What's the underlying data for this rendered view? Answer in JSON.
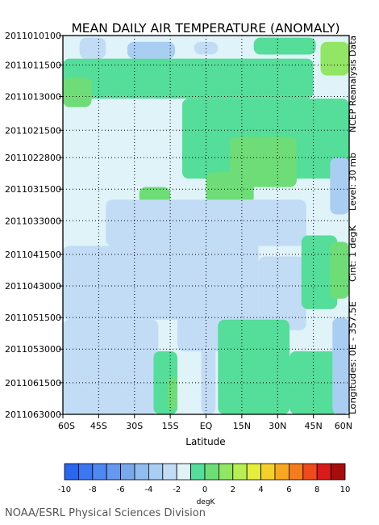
{
  "chart_data": {
    "type": "heatmap",
    "title": "MEAN DAILY AIR TEMPERATURE (ANOMALY)",
    "xlabel": "Latitude",
    "ylabel": "",
    "x_tick_labels": [
      "60S",
      "45S",
      "30S",
      "15S",
      "EQ",
      "15N",
      "30N",
      "45N",
      "60N"
    ],
    "x_values": [
      -60,
      -45,
      -30,
      -15,
      0,
      15,
      30,
      45,
      60
    ],
    "xlim": [
      -60,
      60
    ],
    "y_tick_labels": [
      "2011010100",
      "2011011500",
      "2011013000",
      "2011021500",
      "2011022800",
      "2011031500",
      "2011033000",
      "2011041500",
      "2011043000",
      "2011051500",
      "2011053000",
      "2011061500",
      "2011063000"
    ],
    "y_tick_days": [
      0,
      14,
      29,
      45,
      58,
      73,
      88,
      104,
      119,
      134,
      149,
      165,
      180
    ],
    "ylim": [
      "2011010100",
      "2011063000"
    ],
    "grid": true,
    "side_labels": [
      "NCEP Reanalysis Data",
      "Level: 30 mb",
      "Cint: 1 degK",
      "Longitudes: 0E - 357.5E"
    ],
    "colorbar": {
      "label": "degK",
      "tick_labels": [
        "-10",
        "-8",
        "-6",
        "-4",
        "-2",
        "0",
        "2",
        "4",
        "6",
        "8",
        "10"
      ],
      "levels": [
        -10,
        -9,
        -8,
        -7,
        -6,
        -5,
        -4,
        -3,
        -2,
        -1,
        0,
        1,
        2,
        3,
        4,
        5,
        6,
        7,
        8,
        9,
        10
      ],
      "colors": [
        "#2a66ee",
        "#3c77f0",
        "#4f88f0",
        "#6598ee",
        "#7aa8ec",
        "#92bbee",
        "#aacdf2",
        "#c2dcf6",
        "#dff3f8",
        "#55dd9a",
        "#6fdd77",
        "#92e565",
        "#b7ee55",
        "#e4ee3c",
        "#f6d02a",
        "#f8a820",
        "#f47c1c",
        "#ee4a1c",
        "#d81a1a",
        "#a80d0d"
      ]
    },
    "field_regions": [
      {
        "lat": [
          -60,
          60
        ],
        "day": [
          0,
          180
        ],
        "value": -1.5
      },
      {
        "lat": [
          -53,
          -42
        ],
        "day": [
          1,
          11
        ],
        "value": -3
      },
      {
        "lat": [
          -33,
          -13
        ],
        "day": [
          3,
          11
        ],
        "value": -3.5
      },
      {
        "lat": [
          -5,
          5
        ],
        "day": [
          3,
          9
        ],
        "value": -3
      },
      {
        "lat": [
          20,
          46
        ],
        "day": [
          1,
          9
        ],
        "value": -0.5
      },
      {
        "lat": [
          -60,
          45
        ],
        "day": [
          11,
          30
        ],
        "value": -0.5
      },
      {
        "lat": [
          48,
          60
        ],
        "day": [
          3,
          19
        ],
        "value": 1
      },
      {
        "lat": [
          -60,
          -48
        ],
        "day": [
          20,
          34
        ],
        "value": 0.5
      },
      {
        "lat": [
          -10,
          60
        ],
        "day": [
          30,
          68
        ],
        "value": -0.5
      },
      {
        "lat": [
          10,
          38
        ],
        "day": [
          48,
          72
        ],
        "value": 0.5
      },
      {
        "lat": [
          0,
          20
        ],
        "day": [
          65,
          80
        ],
        "value": 0.5
      },
      {
        "lat": [
          -28,
          -15
        ],
        "day": [
          72,
          80
        ],
        "value": 0.5
      },
      {
        "lat": [
          52,
          60
        ],
        "day": [
          58,
          85
        ],
        "value": -4
      },
      {
        "lat": [
          -42,
          42
        ],
        "day": [
          78,
          100
        ],
        "value": -2.5
      },
      {
        "lat": [
          -60,
          -10
        ],
        "day": [
          100,
          135
        ],
        "value": -2.5
      },
      {
        "lat": [
          -12,
          22
        ],
        "day": [
          98,
          150
        ],
        "value": -3
      },
      {
        "lat": [
          22,
          42
        ],
        "day": [
          105,
          140
        ],
        "value": -2.5
      },
      {
        "lat": [
          40,
          55
        ],
        "day": [
          95,
          130
        ],
        "value": -0.5
      },
      {
        "lat": [
          52,
          60
        ],
        "day": [
          98,
          125
        ],
        "value": 0.5
      },
      {
        "lat": [
          -60,
          -20
        ],
        "day": [
          135,
          180
        ],
        "value": -3
      },
      {
        "lat": [
          -22,
          -12
        ],
        "day": [
          150,
          180
        ],
        "value": -0.5
      },
      {
        "lat": [
          -16,
          -12
        ],
        "day": [
          162,
          178
        ],
        "value": 0.5
      },
      {
        "lat": [
          -2,
          4
        ],
        "day": [
          135,
          180
        ],
        "value": -2.5
      },
      {
        "lat": [
          5,
          35
        ],
        "day": [
          135,
          180
        ],
        "value": -0.5
      },
      {
        "lat": [
          35,
          55
        ],
        "day": [
          150,
          180
        ],
        "value": -0.5
      },
      {
        "lat": [
          53,
          60
        ],
        "day": [
          134,
          180
        ],
        "value": -3.5
      }
    ]
  },
  "credit": "NOAA/ESRL Physical Sciences Division"
}
